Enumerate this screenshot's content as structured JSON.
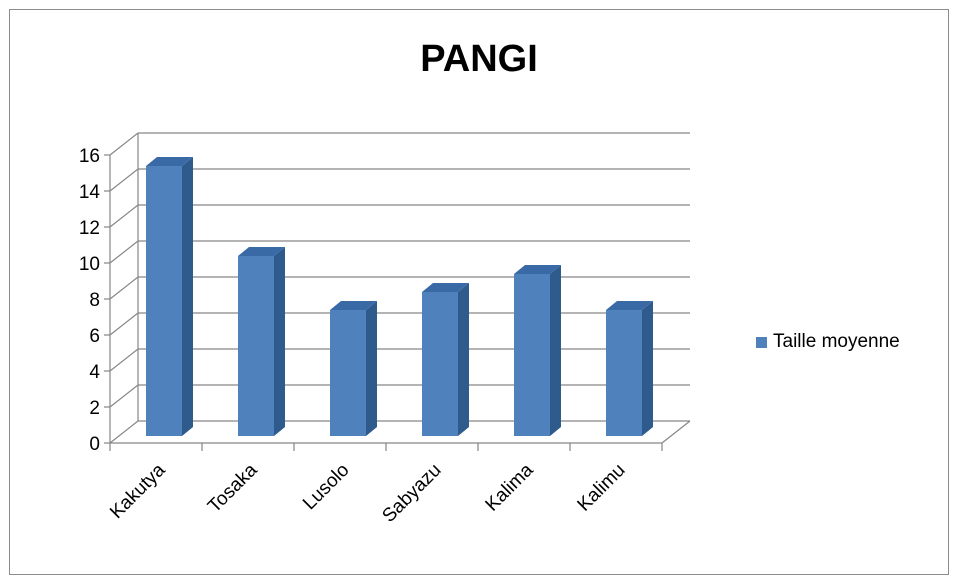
{
  "chart_data": {
    "type": "bar",
    "title": "PANGI",
    "categories": [
      "Kakutya",
      "Tosaka",
      "Lusolo",
      "Sabyazu",
      "Kalima",
      "Kalimu"
    ],
    "series": [
      {
        "name": "Taille moyenne",
        "values": [
          15,
          10,
          7,
          8,
          9,
          7
        ]
      }
    ],
    "y_ticks": [
      "0",
      "2",
      "4",
      "6",
      "8",
      "10",
      "12",
      "14",
      "16"
    ],
    "ylim": [
      0,
      16
    ],
    "xlabel": "",
    "ylabel": "",
    "grid": true,
    "legend_position": "right",
    "bar_color": "#4f81bd",
    "bar_side_color": "#2e5a8c",
    "bar_top_color": "#3a6aa5"
  }
}
